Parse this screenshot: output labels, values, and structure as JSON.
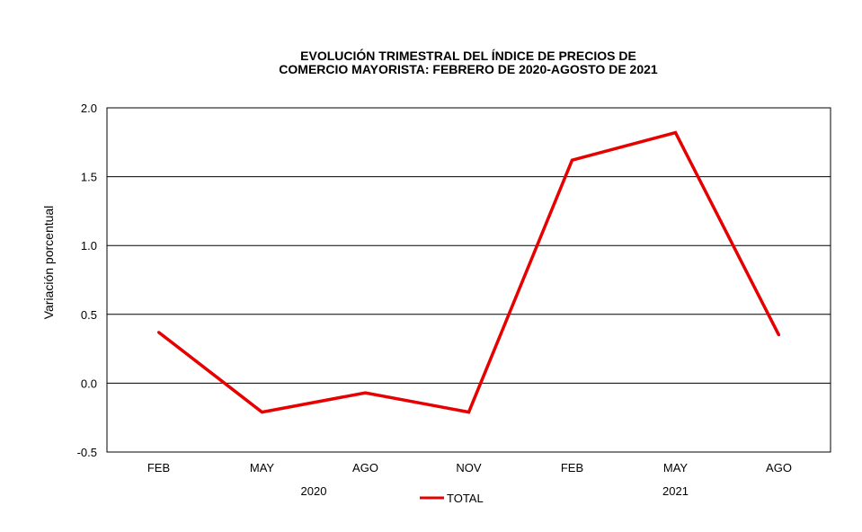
{
  "chart_data": {
    "type": "line",
    "title": "EVOLUCIÓN TRIMESTRAL DEL ÍNDICE DE PRECIOS DE",
    "subtitle": "COMERCIO MAYORISTA:  FEBRERO DE 2020-AGOSTO DE 2021",
    "ylabel": "Variación porcentual",
    "xlabel": "",
    "ylim": [
      -0.5,
      2.0
    ],
    "yticks": [
      "2.0",
      "1.5",
      "1.0",
      "0.5",
      "0.0",
      "-0.5"
    ],
    "ytick_values": [
      2.0,
      1.5,
      1.0,
      0.5,
      0.0,
      -0.5
    ],
    "categories": [
      "FEB",
      "MAY",
      "AGO",
      "NOV",
      "FEB",
      "MAY",
      "AGO"
    ],
    "years": [
      {
        "label": "2020",
        "span": [
          0,
          3
        ]
      },
      {
        "label": "2021",
        "span": [
          4,
          6
        ]
      }
    ],
    "grid": true,
    "legend_position": "bottom",
    "series": [
      {
        "name": "TOTAL",
        "color": "#e60000",
        "values": [
          0.37,
          -0.21,
          -0.07,
          -0.21,
          1.62,
          1.82,
          0.35
        ]
      }
    ]
  }
}
